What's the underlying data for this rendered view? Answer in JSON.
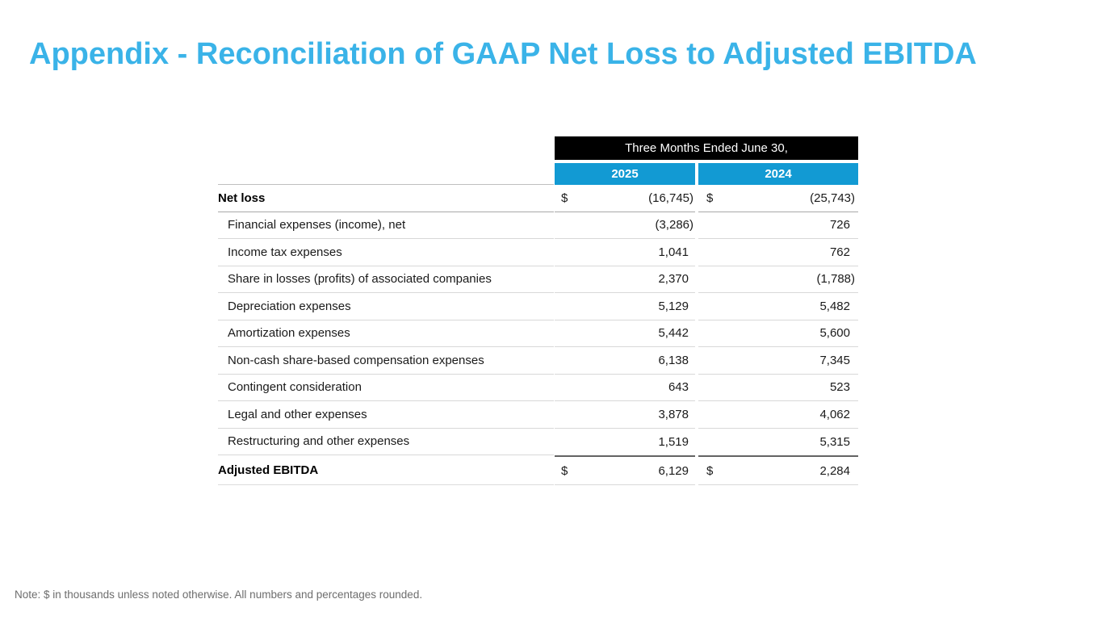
{
  "slide": {
    "title": "Appendix - Reconciliation of GAAP Net Loss to Adjusted EBITDA",
    "note": "Note: $ in thousands unless noted otherwise. All numbers and percentages rounded."
  },
  "colors": {
    "title_blue": "#3AB3E8",
    "header_blue": "#129AD3",
    "header_black": "#000000"
  },
  "table": {
    "span_header": "Three Months Ended June 30,",
    "currency_symbol": "$",
    "col_headers": [
      "2025",
      "2024"
    ],
    "rows": [
      {
        "label": "Net loss",
        "v2025": "(16,745)",
        "v2024": "(25,743)"
      },
      {
        "label": "Financial expenses (income), net",
        "v2025": "(3,286)",
        "v2024": "726"
      },
      {
        "label": "Income tax expenses",
        "v2025": "1,041",
        "v2024": "762"
      },
      {
        "label": "Share in losses (profits) of associated companies",
        "v2025": "2,370",
        "v2024": "(1,788)"
      },
      {
        "label": "Depreciation expenses",
        "v2025": "5,129",
        "v2024": "5,482"
      },
      {
        "label": "Amortization expenses",
        "v2025": "5,442",
        "v2024": "5,600"
      },
      {
        "label": "Non-cash share-based compensation expenses",
        "v2025": "6,138",
        "v2024": "7,345"
      },
      {
        "label": "Contingent consideration",
        "v2025": "643",
        "v2024": "523"
      },
      {
        "label": "Legal and other expenses",
        "v2025": "3,878",
        "v2024": "4,062"
      },
      {
        "label": "Restructuring and other expenses",
        "v2025": "1,519",
        "v2024": "5,315"
      },
      {
        "label": "Adjusted EBITDA",
        "v2025": "6,129",
        "v2024": "2,284"
      }
    ]
  }
}
